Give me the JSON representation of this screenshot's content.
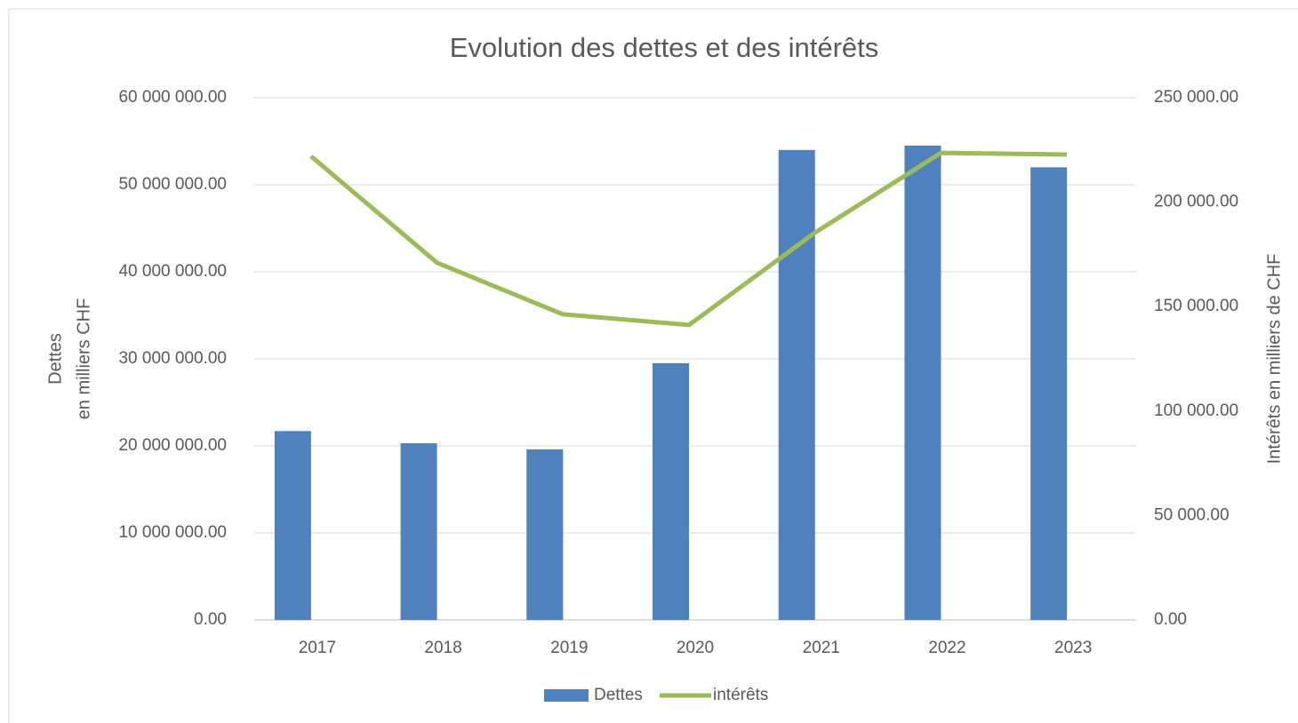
{
  "chart_data": {
    "type": "bar_line",
    "title": "Evolution des dettes et des intérêts",
    "ylabel": [
      "Dettes",
      "en milliers CHF"
    ],
    "y2label": "Intérêts en milliers de CHF",
    "categories": [
      "2017",
      "2018",
      "2019",
      "2020",
      "2021",
      "2022",
      "2023"
    ],
    "series": [
      {
        "name": "Dettes",
        "type": "bar",
        "color": "#4f81bd",
        "values": [
          21700000,
          20300000,
          19600000,
          29500000,
          54000000,
          54500000,
          52000000
        ]
      },
      {
        "name": "intérêts",
        "type": "line",
        "axis": "y2",
        "color": "#9bbb59",
        "values": [
          222000,
          171000,
          146300,
          141200,
          185400,
          223600,
          222800
        ]
      }
    ],
    "ylim": [
      0,
      60000000
    ],
    "yticks": [
      {
        "value": 0,
        "label": "0.00"
      },
      {
        "value": 10000000,
        "label": "10 000 000.00"
      },
      {
        "value": 20000000,
        "label": "20 000 000.00"
      },
      {
        "value": 30000000,
        "label": "30 000 000.00"
      },
      {
        "value": 40000000,
        "label": "40 000 000.00"
      },
      {
        "value": 50000000,
        "label": "50 000 000.00"
      },
      {
        "value": 60000000,
        "label": "60 000 000.00"
      }
    ],
    "y2lim": [
      0,
      250000
    ],
    "y2ticks": [
      {
        "value": 0,
        "label": "0.00"
      },
      {
        "value": 50000,
        "label": "50 000.00"
      },
      {
        "value": 100000,
        "label": "100 000.00"
      },
      {
        "value": 150000,
        "label": "150 000.00"
      },
      {
        "value": 200000,
        "label": "200 000.00"
      },
      {
        "value": 250000,
        "label": "250 000.00"
      }
    ],
    "grid": true,
    "legend": "bottom"
  }
}
